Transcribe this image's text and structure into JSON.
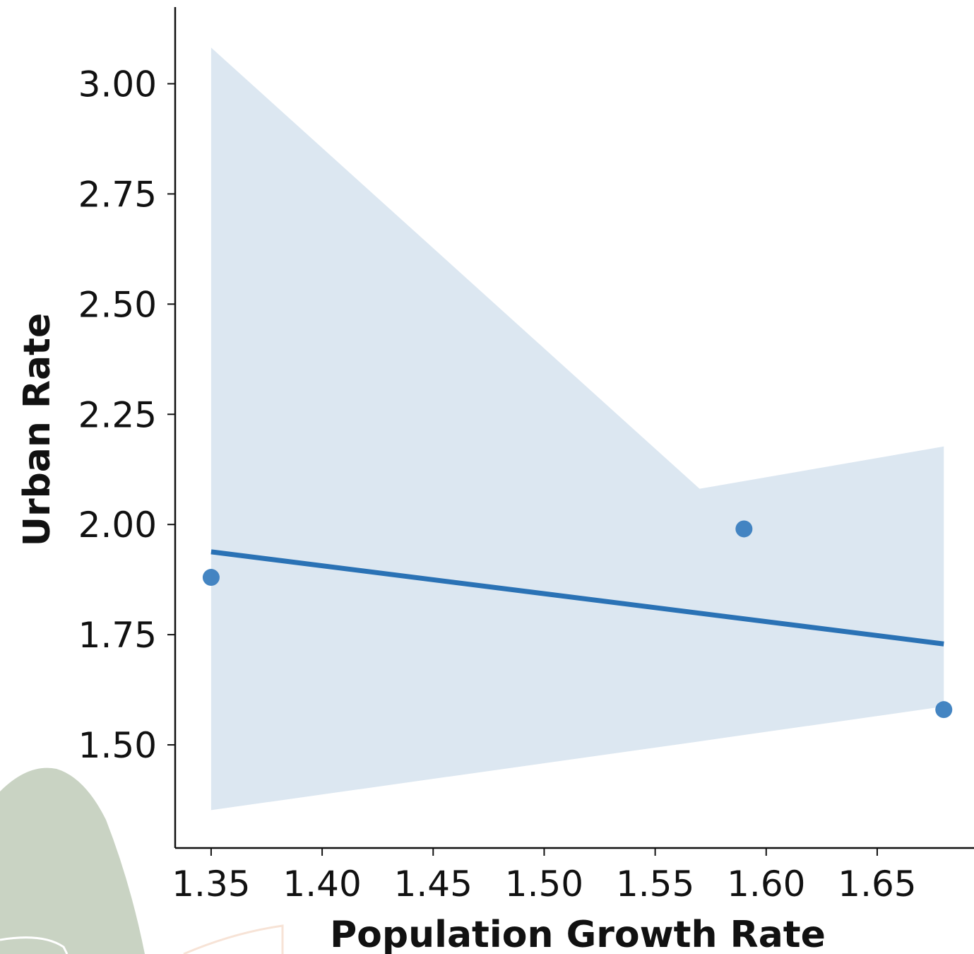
{
  "chart_data": {
    "type": "scatter",
    "x_label": "Population Growth Rate",
    "y_label": "Urban Rate",
    "x": [
      1.35,
      1.59,
      1.68
    ],
    "values": [
      1.88,
      1.99,
      1.58
    ],
    "color": "#3a7ebf",
    "regression": {
      "x": [
        1.35,
        1.68
      ],
      "values": [
        1.938,
        1.729
      ],
      "color": "#2a72b5"
    },
    "confidence_band": {
      "x": [
        1.35,
        1.57,
        1.68
      ],
      "upper": [
        3.082,
        2.081,
        2.177
      ],
      "lower": [
        1.352,
        1.508,
        1.587
      ],
      "color": "#dce7f1"
    },
    "xlim": [
      1.3338,
      1.6936
    ],
    "ylim": [
      1.266,
      3.19
    ],
    "xticks": [
      1.35,
      {
        "value": 1.4,
        "label": "1.40"
      },
      1.45,
      {
        "value": 1.5,
        "label": "1.50"
      },
      1.55,
      {
        "value": 1.6,
        "label": "1.60"
      },
      1.65
    ],
    "yticks": [
      {
        "value": 1.5,
        "label": "1.50"
      },
      {
        "value": 1.75,
        "label": "1.75"
      },
      {
        "value": 2.0,
        "label": "2.00"
      },
      {
        "value": 2.25,
        "label": "2.25"
      },
      {
        "value": 2.5,
        "label": "2.50"
      },
      {
        "value": 2.75,
        "label": "2.75"
      },
      {
        "value": 3.0,
        "label": "3.00"
      }
    ],
    "grid": false
  }
}
